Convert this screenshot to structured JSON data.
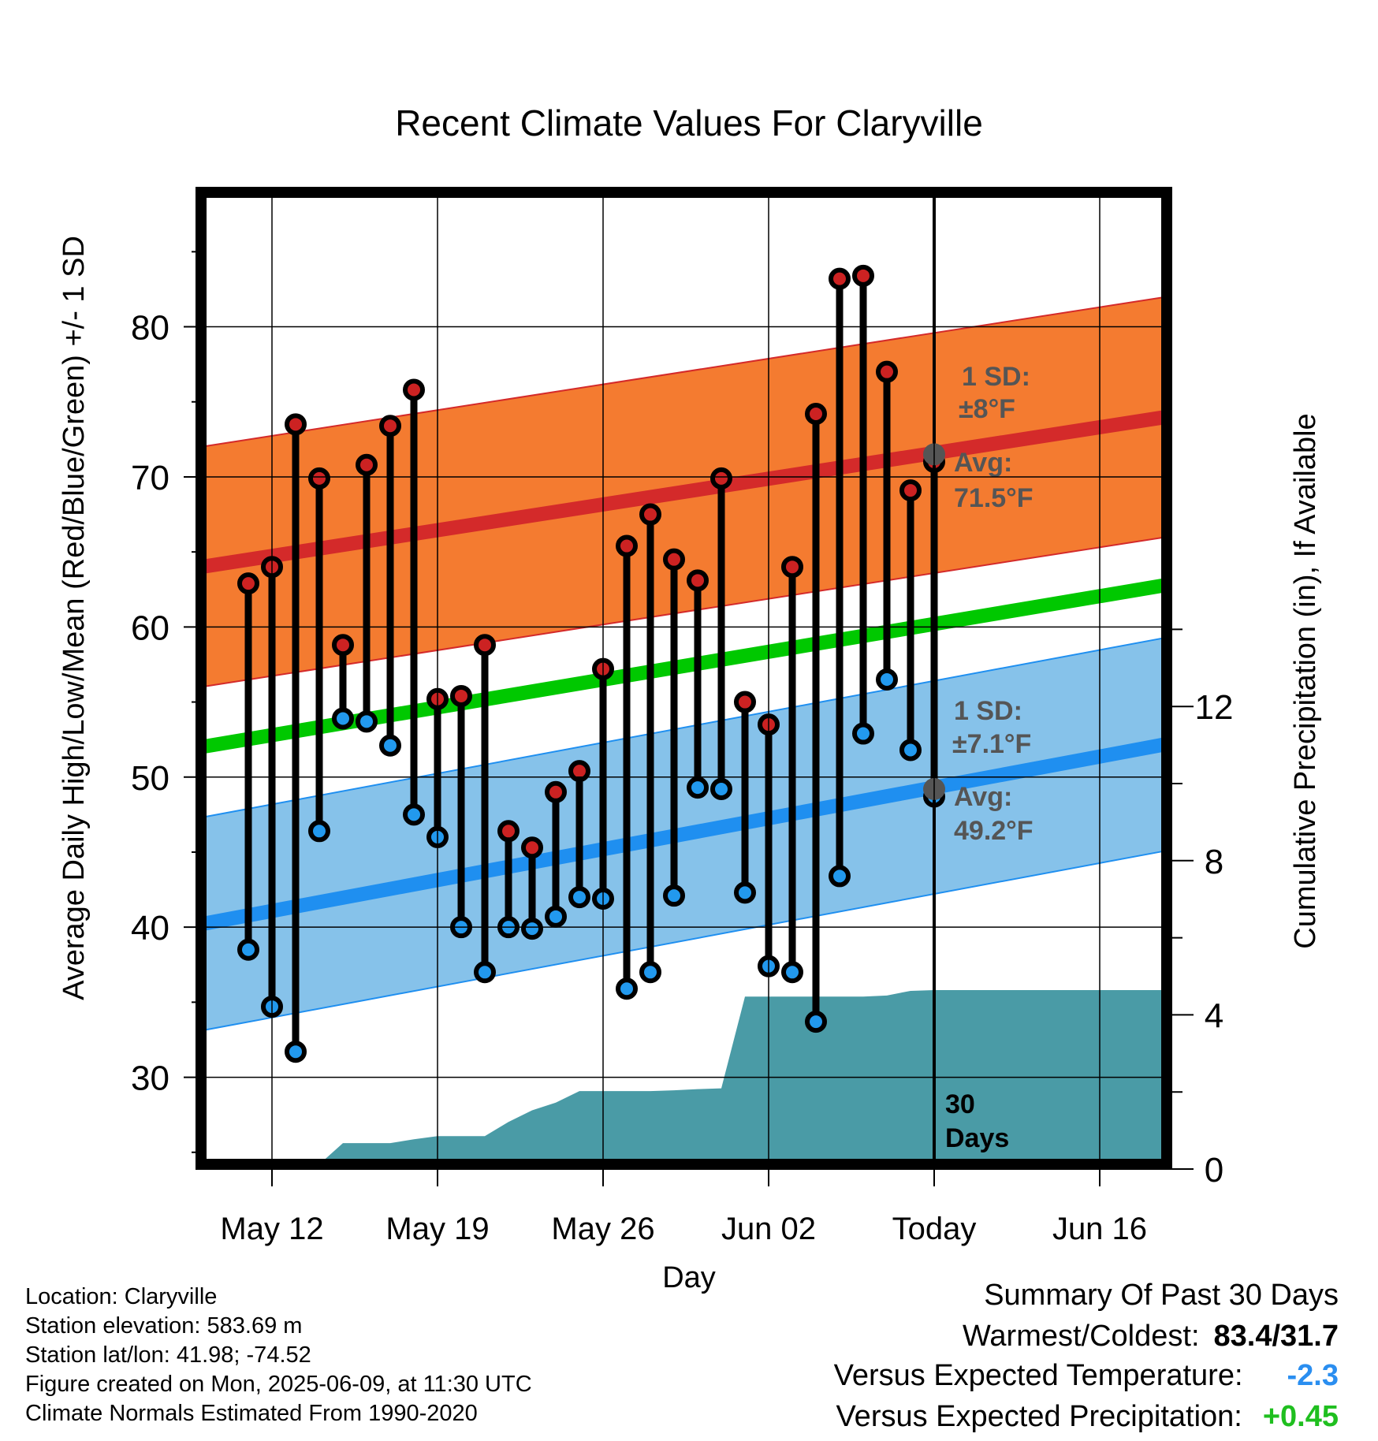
{
  "chart_data": {
    "type": "line",
    "title": "Recent Climate Values For Claryville",
    "xlabel": "Day",
    "ylabel": "Average Daily High/Low/Mean (Red/Blue/Green) +/- 1 SD",
    "y2label": "Cumulative Precipitation (in), If Available",
    "ylim": [
      24.2,
      88.8
    ],
    "y2lim": [
      0,
      24.8
    ],
    "yticks": [
      30,
      40,
      50,
      60,
      70,
      80
    ],
    "y2ticks": [
      0,
      4,
      8,
      12
    ],
    "xlim": [
      "2025-05-09",
      "2025-06-19"
    ],
    "xtick_dates": [
      "2025-05-12",
      "2025-05-19",
      "2025-05-26",
      "2025-06-02",
      "2025-06-09",
      "2025-06-16"
    ],
    "xtick_labels": [
      "May 12",
      "May 19",
      "May 26",
      "Jun 02",
      "Today",
      "Jun 16"
    ],
    "grid": true,
    "today_marker": {
      "date": "2025-06-09",
      "label_line1": "30",
      "label_line2": "Days"
    },
    "normals": {
      "avg_high": {
        "start": 64.0,
        "end": 74.0,
        "sd": 8.0,
        "color": "#d42a2a",
        "band_color": "#f47b30"
      },
      "avg_low": {
        "start": 40.2,
        "end": 52.2,
        "sd": 7.1,
        "color": "#1f8ff0",
        "band_color": "#86c2ea"
      },
      "avg_mean": {
        "start": 52.0,
        "end": 62.8,
        "color": "#00c800"
      }
    },
    "annotations": {
      "high_sd": {
        "line1": "1 SD:",
        "line2": "±8°F"
      },
      "high_avg": {
        "line1": "Avg:",
        "line2": "71.5°F",
        "value": 71.5
      },
      "low_sd": {
        "line1": "1 SD:",
        "line2": "±7.1°F"
      },
      "low_avg": {
        "line1": "Avg:",
        "line2": "49.2°F",
        "value": 49.2
      }
    },
    "series": [
      {
        "name": "High",
        "color": "#cc2222",
        "x": [
          "2025-05-10",
          "2025-05-11",
          "2025-05-12",
          "2025-05-13",
          "2025-05-14",
          "2025-05-15",
          "2025-05-16",
          "2025-05-17",
          "2025-05-18",
          "2025-05-19",
          "2025-05-20",
          "2025-05-21",
          "2025-05-22",
          "2025-05-23",
          "2025-05-24",
          "2025-05-25",
          "2025-05-26",
          "2025-05-27",
          "2025-05-28",
          "2025-05-29",
          "2025-05-30",
          "2025-05-31",
          "2025-06-01",
          "2025-06-02",
          "2025-06-03",
          "2025-06-04",
          "2025-06-05",
          "2025-06-06",
          "2025-06-07",
          "2025-06-08"
        ],
        "values": [
          62.9,
          64.0,
          73.5,
          69.9,
          58.8,
          70.8,
          73.4,
          75.8,
          55.2,
          55.4,
          58.8,
          46.4,
          45.3,
          49.0,
          50.4,
          57.2,
          65.4,
          67.5,
          64.5,
          63.1,
          69.9,
          55.0,
          53.5,
          64.0,
          74.2,
          83.2,
          83.4,
          77.0,
          69.1,
          71.0
        ]
      },
      {
        "name": "Low",
        "color": "#2299ee",
        "x": [
          "2025-05-10",
          "2025-05-11",
          "2025-05-12",
          "2025-05-13",
          "2025-05-14",
          "2025-05-15",
          "2025-05-16",
          "2025-05-17",
          "2025-05-18",
          "2025-05-19",
          "2025-05-20",
          "2025-05-21",
          "2025-05-22",
          "2025-05-23",
          "2025-05-24",
          "2025-05-25",
          "2025-05-26",
          "2025-05-27",
          "2025-05-28",
          "2025-05-29",
          "2025-05-30",
          "2025-05-31",
          "2025-06-01",
          "2025-06-02",
          "2025-06-03",
          "2025-06-04",
          "2025-06-05",
          "2025-06-06",
          "2025-06-07",
          "2025-06-08"
        ],
        "values": [
          38.5,
          34.7,
          31.7,
          46.4,
          53.9,
          53.7,
          52.1,
          47.5,
          46.0,
          40.0,
          37.0,
          40.0,
          39.9,
          40.7,
          42.0,
          41.9,
          35.9,
          37.0,
          42.1,
          49.3,
          49.2,
          42.3,
          37.4,
          37.0,
          33.7,
          43.4,
          52.9,
          56.5,
          51.8,
          48.7
        ]
      },
      {
        "name": "Cumulative Precipitation",
        "color": "#4a9ba6",
        "x": [
          "2025-05-10",
          "2025-05-11",
          "2025-05-12",
          "2025-05-13",
          "2025-05-14",
          "2025-05-15",
          "2025-05-16",
          "2025-05-17",
          "2025-05-18",
          "2025-05-19",
          "2025-05-20",
          "2025-05-21",
          "2025-05-22",
          "2025-05-23",
          "2025-05-24",
          "2025-05-25",
          "2025-05-26",
          "2025-05-27",
          "2025-05-28",
          "2025-05-29",
          "2025-05-30",
          "2025-05-31",
          "2025-06-01",
          "2025-06-02",
          "2025-06-03",
          "2025-06-04",
          "2025-06-05",
          "2025-06-06",
          "2025-06-07",
          "2025-06-08",
          "2025-06-19"
        ],
        "values": [
          0,
          0,
          0,
          0,
          0.55,
          0.55,
          0.55,
          0.65,
          0.73,
          0.73,
          0.73,
          1.1,
          1.4,
          1.6,
          1.9,
          1.9,
          1.9,
          1.9,
          1.92,
          1.95,
          1.97,
          4.35,
          4.35,
          4.35,
          4.35,
          4.35,
          4.35,
          4.38,
          4.5,
          4.52,
          4.52
        ]
      }
    ]
  },
  "info": {
    "location": "Location: Claryville",
    "elevation": "Station elevation: 583.69 m",
    "latlon": "Station lat/lon: 41.98; -74.52",
    "created": "Figure created on Mon, 2025-06-09, at 11:30 UTC",
    "normals": "Climate Normals Estimated From 1990-2020"
  },
  "summary": {
    "title": "Summary Of Past 30 Days",
    "warm_cold_label": "Warmest/Coldest:",
    "warm_cold_value": "83.4/31.7",
    "temp_label": "Versus Expected Temperature:",
    "temp_value": "-2.3",
    "temp_color": "#2a8ef0",
    "precip_label": "Versus Expected Precipitation:",
    "precip_value": "+0.45",
    "precip_color": "#1fbf1f"
  }
}
